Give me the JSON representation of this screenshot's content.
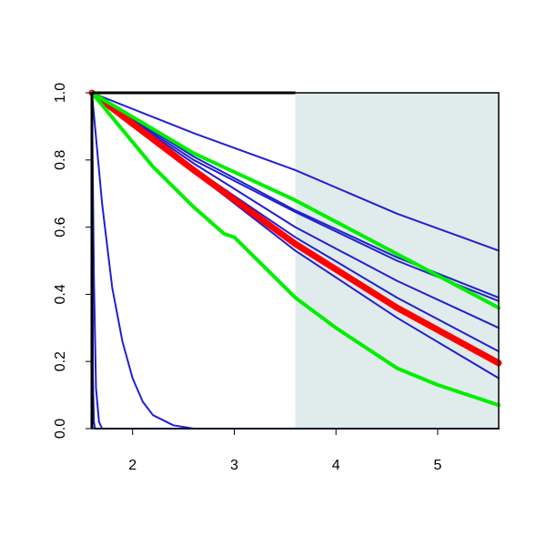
{
  "chart_data": {
    "type": "line",
    "title": "",
    "xlabel": "",
    "ylabel": "",
    "xlim": [
      1.6,
      5.6
    ],
    "ylim": [
      0.0,
      1.0
    ],
    "x_ticks": [
      {
        "value": 2,
        "label": "2"
      },
      {
        "value": 3,
        "label": "3"
      },
      {
        "value": 4,
        "label": "4"
      },
      {
        "value": 5,
        "label": "5"
      }
    ],
    "y_ticks": [
      {
        "value": 0.0,
        "label": "0.0"
      },
      {
        "value": 0.2,
        "label": "0.2"
      },
      {
        "value": 0.4,
        "label": "0.4"
      },
      {
        "value": 0.6,
        "label": "0.6"
      },
      {
        "value": 0.8,
        "label": "0.8"
      },
      {
        "value": 1.0,
        "label": "1.0"
      }
    ],
    "shaded_region": {
      "x_from": 3.6,
      "x_to": 5.6,
      "color": "#e0eceb"
    },
    "grid": false,
    "legend": "none",
    "series": [
      {
        "color": "#2020d0",
        "width": 2,
        "points": [
          [
            1.6,
            1.0
          ],
          [
            2.6,
            0.88
          ],
          [
            3.6,
            0.77
          ],
          [
            4.6,
            0.64
          ],
          [
            5.6,
            0.53
          ]
        ]
      },
      {
        "color": "#2020d0",
        "width": 2,
        "points": [
          [
            1.6,
            1.0
          ],
          [
            2.6,
            0.81
          ],
          [
            3.6,
            0.65
          ],
          [
            4.6,
            0.51
          ],
          [
            5.6,
            0.39
          ]
        ]
      },
      {
        "color": "#2020d0",
        "width": 2,
        "points": [
          [
            1.6,
            1.0
          ],
          [
            2.6,
            0.8
          ],
          [
            3.6,
            0.645
          ],
          [
            4.6,
            0.5
          ],
          [
            5.6,
            0.38
          ]
        ]
      },
      {
        "color": "#2020d0",
        "width": 2,
        "points": [
          [
            1.6,
            1.0
          ],
          [
            2.6,
            0.79
          ],
          [
            3.6,
            0.6
          ],
          [
            4.6,
            0.44
          ],
          [
            5.6,
            0.3
          ]
        ]
      },
      {
        "color": "#2020d0",
        "width": 2,
        "points": [
          [
            1.6,
            1.0
          ],
          [
            2.6,
            0.775
          ],
          [
            3.6,
            0.57
          ],
          [
            4.6,
            0.39
          ],
          [
            5.6,
            0.23
          ]
        ]
      },
      {
        "color": "#2020d0",
        "width": 2,
        "points": [
          [
            1.6,
            1.0
          ],
          [
            2.6,
            0.765
          ],
          [
            3.6,
            0.53
          ],
          [
            4.6,
            0.33
          ],
          [
            5.6,
            0.15
          ]
        ]
      },
      {
        "color": "#ff0000",
        "width": 7,
        "points": [
          [
            1.6,
            1.0
          ],
          [
            2.6,
            0.77
          ],
          [
            3.6,
            0.55
          ],
          [
            4.6,
            0.36
          ],
          [
            5.6,
            0.195
          ]
        ]
      },
      {
        "color": "#00ee00",
        "width": 4,
        "points": [
          [
            1.6,
            1.0
          ],
          [
            2.6,
            0.82
          ],
          [
            3.6,
            0.68
          ],
          [
            4.6,
            0.52
          ],
          [
            5.6,
            0.36
          ]
        ]
      },
      {
        "color": "#00ee00",
        "width": 4,
        "points": [
          [
            1.6,
            1.0
          ],
          [
            2.2,
            0.78
          ],
          [
            2.6,
            0.66
          ],
          [
            2.9,
            0.58
          ],
          [
            3.0,
            0.57
          ],
          [
            3.6,
            0.39
          ],
          [
            4.0,
            0.3
          ],
          [
            4.6,
            0.18
          ],
          [
            5.0,
            0.13
          ],
          [
            5.6,
            0.07
          ]
        ]
      },
      {
        "color": "#2020d0",
        "width": 2,
        "points": [
          [
            1.6,
            1.0
          ],
          [
            1.7,
            0.67
          ],
          [
            1.8,
            0.42
          ],
          [
            1.9,
            0.26
          ],
          [
            2.0,
            0.15
          ],
          [
            2.1,
            0.08
          ],
          [
            2.2,
            0.04
          ],
          [
            2.4,
            0.01
          ],
          [
            2.6,
            0.0
          ],
          [
            5.6,
            0.0
          ]
        ]
      },
      {
        "color": "#2020d0",
        "width": 2,
        "points": [
          [
            1.6,
            1.0
          ],
          [
            1.62,
            0.45
          ],
          [
            1.64,
            0.12
          ],
          [
            1.67,
            0.02
          ],
          [
            1.7,
            0.0
          ],
          [
            5.6,
            0.0
          ]
        ]
      },
      {
        "color": "#2020d0",
        "width": 2,
        "points": [
          [
            1.6,
            1.0
          ],
          [
            1.61,
            0.15
          ],
          [
            1.62,
            0.02
          ],
          [
            1.63,
            0.0
          ],
          [
            5.6,
            0.0
          ]
        ]
      }
    ]
  }
}
